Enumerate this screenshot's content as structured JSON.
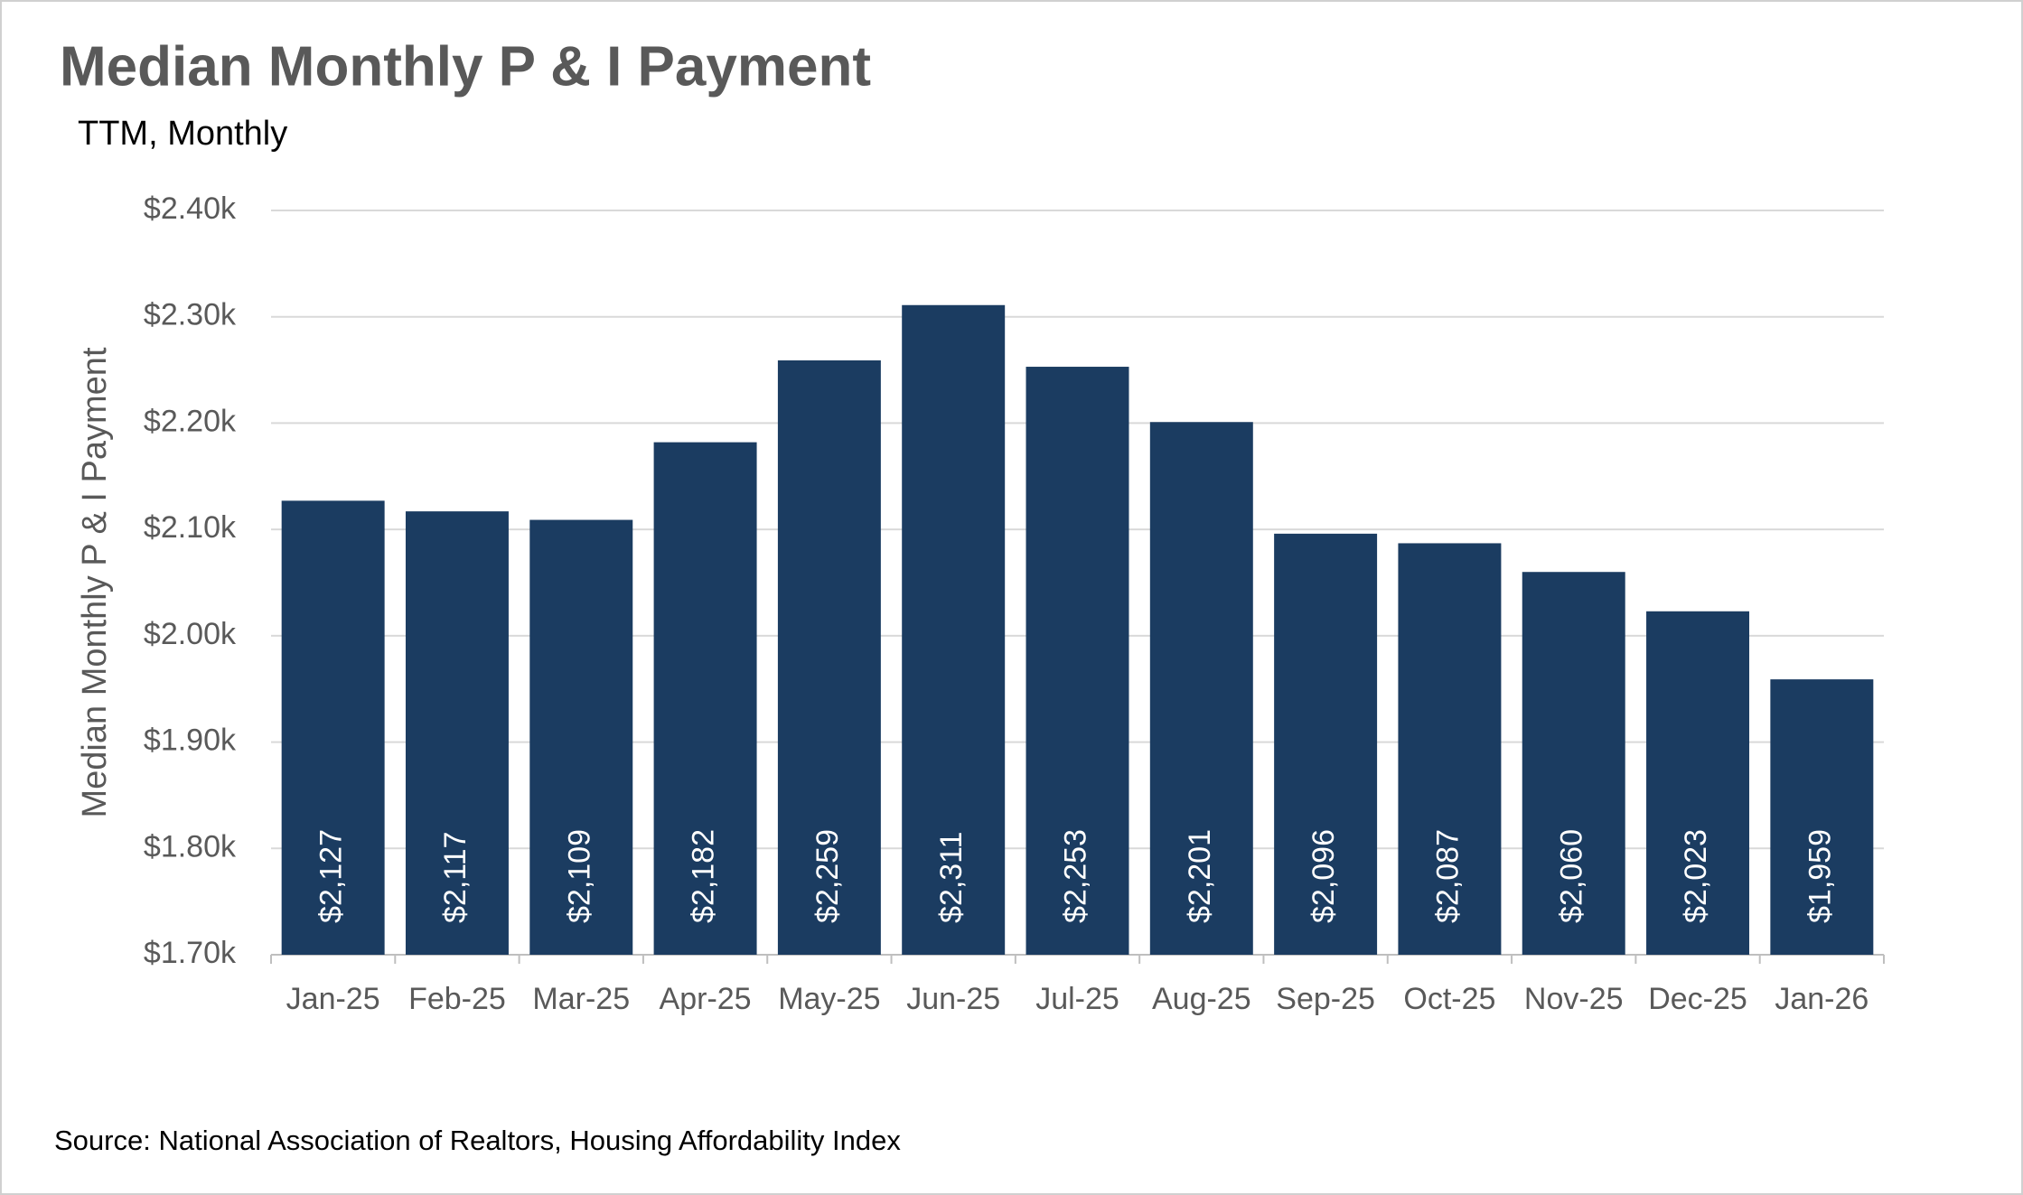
{
  "chart_data": {
    "type": "bar",
    "title": "Median Monthly P & I Payment",
    "subtitle": "TTM, Monthly",
    "y_label": "Median Monthly P & I Payment",
    "source": "Source: National Association of Realtors, Housing Affordability Index",
    "categories": [
      "Jan-25",
      "Feb-25",
      "Mar-25",
      "Apr-25",
      "May-25",
      "Jun-25",
      "Jul-25",
      "Aug-25",
      "Sep-25",
      "Oct-25",
      "Nov-25",
      "Dec-25",
      "Jan-26"
    ],
    "values": [
      2127,
      2117,
      2109,
      2182,
      2259,
      2311,
      2253,
      2201,
      2096,
      2087,
      2060,
      2023,
      1959
    ],
    "value_labels": [
      "$2,127",
      "$2,117",
      "$2,109",
      "$2,182",
      "$2,259",
      "$2,311",
      "$2,253",
      "$2,201",
      "$2,096",
      "$2,087",
      "$2,060",
      "$2,023",
      "$1,959"
    ],
    "color": "#1b3c61",
    "ylim": [
      1700,
      2400
    ],
    "yticks": [
      {
        "value": 1700,
        "label": "$1.70k"
      },
      {
        "value": 1800,
        "label": "$1.80k"
      },
      {
        "value": 1900,
        "label": "$1.90k"
      },
      {
        "value": 2000,
        "label": "$2.00k"
      },
      {
        "value": 2100,
        "label": "$2.10k"
      },
      {
        "value": 2200,
        "label": "$2.20k"
      },
      {
        "value": 2300,
        "label": "$2.30k"
      },
      {
        "value": 2400,
        "label": "$2.40k"
      }
    ],
    "grid": true
  }
}
